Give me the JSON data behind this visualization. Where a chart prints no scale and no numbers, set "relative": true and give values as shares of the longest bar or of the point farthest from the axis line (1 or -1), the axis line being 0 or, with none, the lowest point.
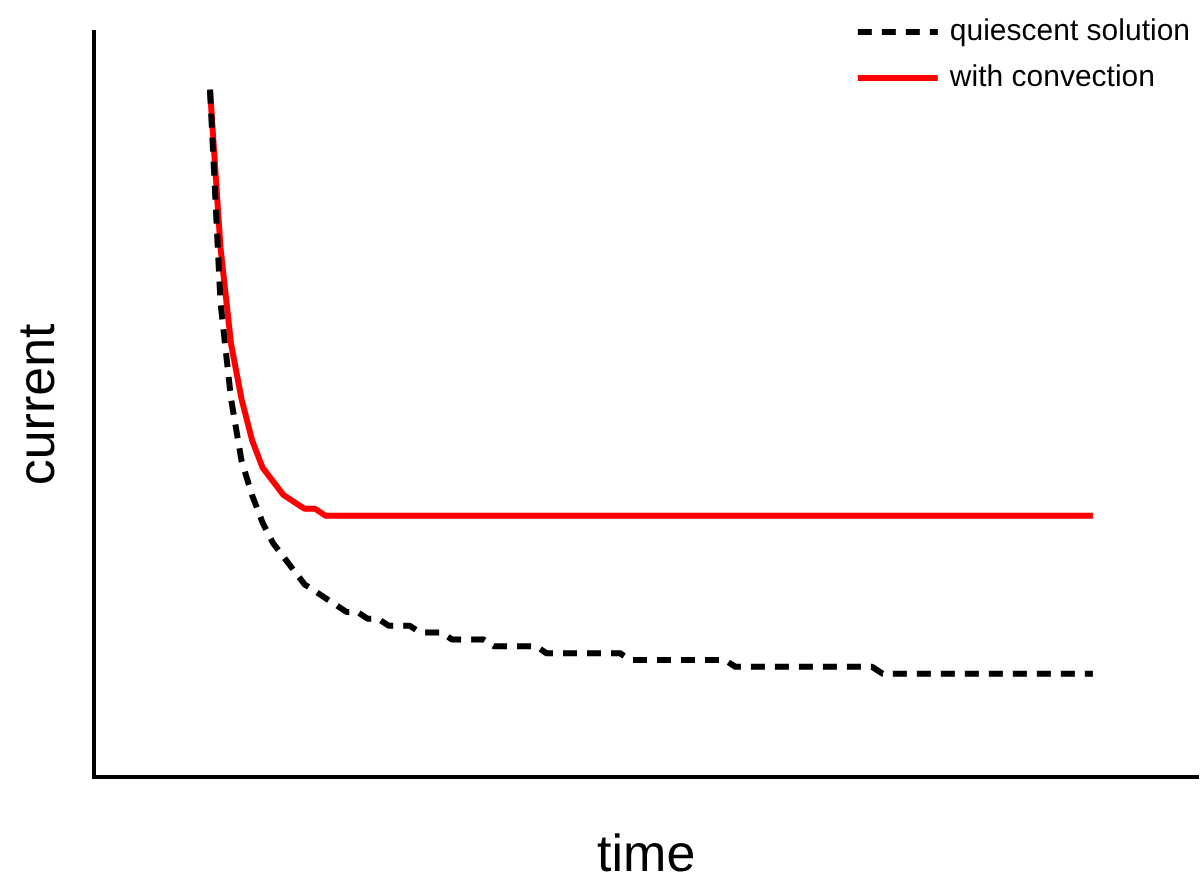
{
  "chart_data": {
    "type": "line",
    "xlabel": "time",
    "ylabel": "current",
    "relative": true,
    "legend": "top right",
    "marker": "none",
    "grid": false,
    "categories": [
      null,
      null,
      null,
      null,
      null,
      null,
      null,
      null,
      null,
      null,
      null,
      null,
      null,
      null,
      null,
      null,
      null,
      null,
      null,
      null,
      null,
      null,
      null,
      null,
      null,
      null,
      null,
      null,
      null,
      null,
      null,
      null,
      null,
      null,
      null,
      null,
      null,
      null,
      null,
      null,
      null,
      null,
      null,
      null,
      null,
      null,
      null,
      null,
      null,
      null,
      null,
      null,
      null,
      null,
      null,
      null,
      null,
      null,
      null,
      null,
      null,
      null,
      null,
      null,
      null,
      null,
      null,
      null,
      null,
      null,
      null,
      null,
      null,
      null,
      null,
      null,
      null,
      null,
      null,
      null,
      null,
      null,
      null,
      null,
      null,
      null,
      null,
      null,
      null,
      null,
      null,
      null,
      null,
      null,
      null,
      null,
      null,
      null,
      null,
      null,
      null,
      null,
      null,
      null,
      null,
      null
    ],
    "series": [
      {
        "name": "quiescent solution",
        "color": "#000000",
        "line_style": "dashed",
        "values": [
          null,
          null,
          null,
          null,
          null,
          null,
          null,
          null,
          null,
          null,
          null,
          1.0,
          0.69,
          0.55,
          0.46,
          0.41,
          0.37,
          0.34,
          0.32,
          0.3,
          0.28,
          0.27,
          0.26,
          0.25,
          0.24,
          0.24,
          0.23,
          0.23,
          0.22,
          0.22,
          0.22,
          0.21,
          0.21,
          0.21,
          0.2,
          0.2,
          0.2,
          0.2,
          0.19,
          0.19,
          0.19,
          0.19,
          0.19,
          0.18,
          0.18,
          0.18,
          0.18,
          0.18,
          0.18,
          0.18,
          0.18,
          0.17,
          0.17,
          0.17,
          0.17,
          0.17,
          0.17,
          0.17,
          0.17,
          0.17,
          0.17,
          0.16,
          0.16,
          0.16,
          0.16,
          0.16,
          0.16,
          0.16,
          0.16,
          0.16,
          0.16,
          0.16,
          0.16,
          0.16,
          0.16,
          0.15,
          0.15,
          0.15,
          0.15,
          0.15,
          0.15,
          0.15,
          0.15,
          0.15,
          0.15,
          0.15,
          0.15,
          0.15,
          0.15,
          0.15,
          0.15,
          0.15,
          0.15,
          0.15,
          0.15,
          0.15,
          null,
          null,
          null,
          null,
          null,
          null,
          null,
          null,
          null,
          null
        ]
      },
      {
        "name": "with convection",
        "color": "#ff0000",
        "line_style": "solid",
        "values": [
          null,
          null,
          null,
          null,
          null,
          null,
          null,
          null,
          null,
          null,
          null,
          1.0,
          0.77,
          0.63,
          0.55,
          0.49,
          0.45,
          0.43,
          0.41,
          0.4,
          0.39,
          0.39,
          0.38,
          0.38,
          0.38,
          0.38,
          0.38,
          0.38,
          0.38,
          0.38,
          0.38,
          0.38,
          0.38,
          0.38,
          0.38,
          0.38,
          0.38,
          0.38,
          0.38,
          0.38,
          0.38,
          0.38,
          0.38,
          0.38,
          0.38,
          0.38,
          0.38,
          0.38,
          0.38,
          0.38,
          0.38,
          0.38,
          0.38,
          0.38,
          0.38,
          0.38,
          0.38,
          0.38,
          0.38,
          0.38,
          0.38,
          0.38,
          0.38,
          0.38,
          0.38,
          0.38,
          0.38,
          0.38,
          0.38,
          0.38,
          0.38,
          0.38,
          0.38,
          0.38,
          0.38,
          0.38,
          0.38,
          0.38,
          0.38,
          0.38,
          0.38,
          0.38,
          0.38,
          0.38,
          0.38,
          0.38,
          0.38,
          0.38,
          0.38,
          0.38,
          0.38,
          0.38,
          0.38,
          0.38,
          0.38,
          0.38,
          null,
          null,
          null,
          null,
          null,
          null,
          null,
          null,
          null,
          null
        ]
      }
    ]
  }
}
